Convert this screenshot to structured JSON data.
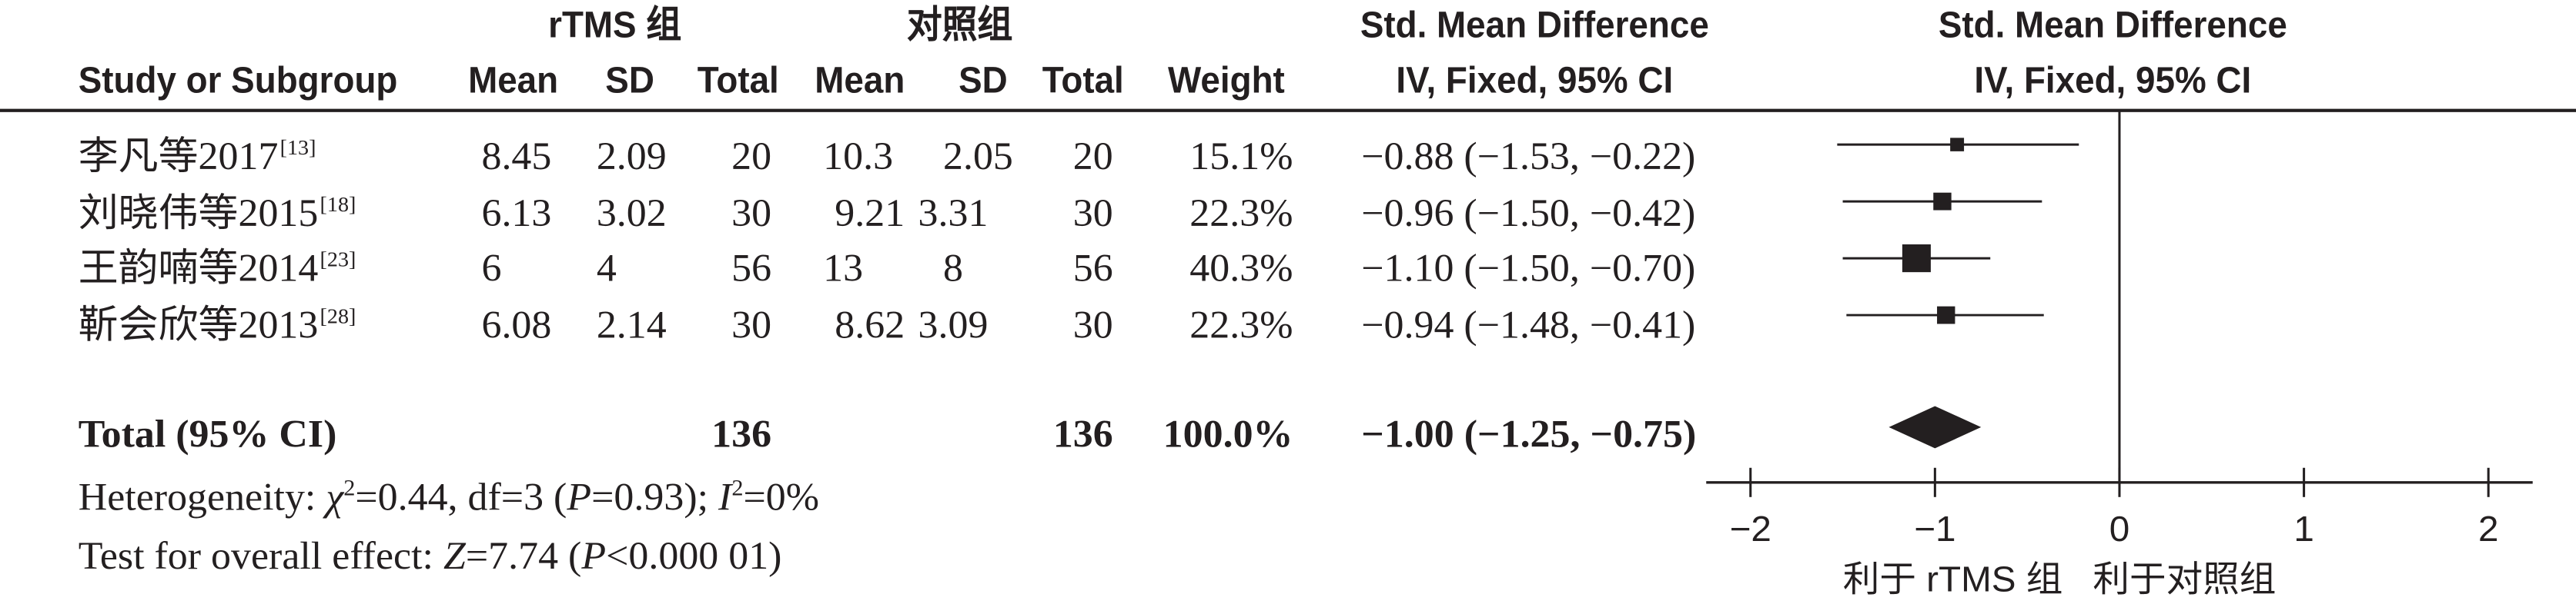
{
  "colors": {
    "ink": "#231f20",
    "background": "#ffffff"
  },
  "table": {
    "group_headers": {
      "treatment": "rTMS 组",
      "control": "对照组",
      "effect": "Std. Mean Difference"
    },
    "columns": {
      "study": "Study or Subgroup",
      "treatment_mean": "Mean",
      "treatment_sd": "SD",
      "treatment_total": "Total",
      "control_mean": "Mean",
      "control_sd": "SD",
      "control_total": "Total",
      "weight": "Weight",
      "effect": "IV, Fixed, 95% CI"
    },
    "rows": [
      {
        "study": "李凡等2017",
        "ref": "[13]",
        "treatment_mean": "8.45",
        "treatment_sd": "2.09",
        "treatment_total": "20",
        "control_mean": "10.3",
        "control_sd": "2.05",
        "control_total": "20",
        "weight": "15.1%",
        "effect": "−0.88 (−1.53, −0.22)"
      },
      {
        "study": "刘晓伟等2015",
        "ref": "[18]",
        "treatment_mean": "6.13",
        "treatment_sd": "3.02",
        "treatment_total": "30",
        "control_mean": "9.21",
        "control_sd": "3.31",
        "control_total": "30",
        "weight": "22.3%",
        "effect": "−0.96 (−1.50, −0.42)"
      },
      {
        "study": "王韵喃等2014",
        "ref": "[23]",
        "treatment_mean": "6",
        "treatment_sd": "4",
        "treatment_total": "56",
        "control_mean": "13",
        "control_sd": "8",
        "control_total": "56",
        "weight": "40.3%",
        "effect": "−1.10 (−1.50, −0.70)"
      },
      {
        "study": "靳会欣等2013",
        "ref": "[28]",
        "treatment_mean": "6.08",
        "treatment_sd": "2.14",
        "treatment_total": "30",
        "control_mean": "8.62",
        "control_sd": "3.09",
        "control_total": "30",
        "weight": "22.3%",
        "effect": "−0.94 (−1.48, −0.41)"
      }
    ],
    "total": {
      "label": "Total (95% CI)",
      "treatment_total": "136",
      "control_total": "136",
      "weight": "100.0%",
      "effect": "−1.00 (−1.25, −0.75)"
    },
    "heterogeneity": [
      "Heterogeneity: ",
      "χ",
      "2",
      "=0.44, df=3 (",
      "P",
      "=0.93); ",
      "I",
      "2",
      "=0%"
    ],
    "overall_effect": [
      "Test for overall effect: ",
      "Z",
      "=7.74 (",
      "P",
      "<0.000 01)"
    ]
  },
  "chart_data": {
    "type": "scatter",
    "header": [
      "Std. Mean Difference",
      "IV, Fixed, 95% CI"
    ],
    "xlim": [
      -2.24,
      2.24
    ],
    "xticks": [
      -2,
      -1,
      0,
      1,
      2
    ],
    "xtick_labels": [
      "−2",
      "−1",
      "0",
      "1",
      "2"
    ],
    "reference_line": 0,
    "xlabel_left": "利于 rTMS 组",
    "xlabel_right": "利于对照组",
    "studies": [
      {
        "smd": -0.88,
        "ci": [
          -1.53,
          -0.22
        ],
        "weight": 15.1
      },
      {
        "smd": -0.96,
        "ci": [
          -1.5,
          -0.42
        ],
        "weight": 22.3
      },
      {
        "smd": -1.1,
        "ci": [
          -1.5,
          -0.7
        ],
        "weight": 40.3
      },
      {
        "smd": -0.94,
        "ci": [
          -1.48,
          -0.41
        ],
        "weight": 22.3
      }
    ],
    "pooled": {
      "smd": -1.0,
      "ci": [
        -1.25,
        -0.75
      ]
    }
  }
}
